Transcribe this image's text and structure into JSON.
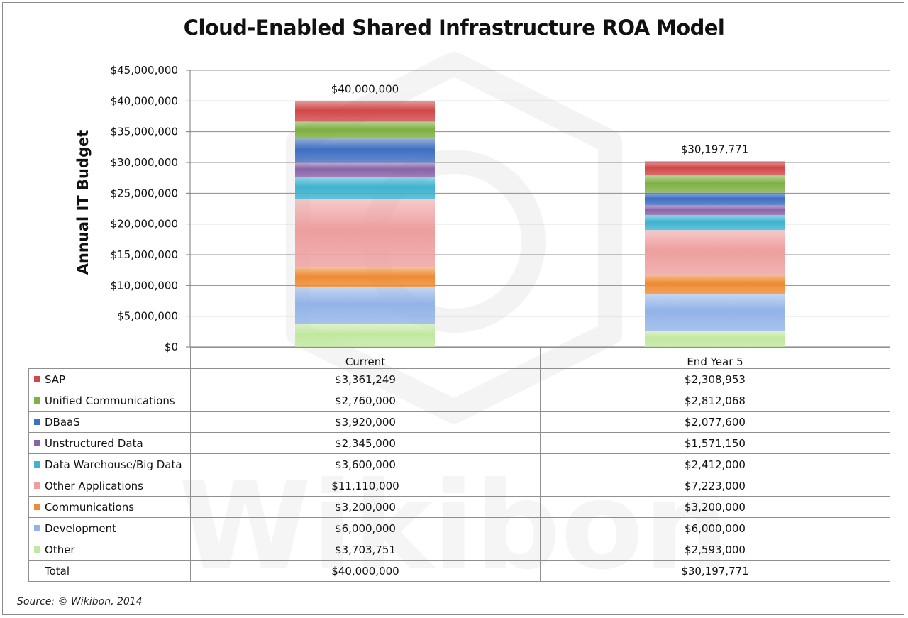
{
  "chart_data": {
    "type": "bar",
    "stacked": true,
    "title": "Cloud-Enabled Shared Infrastructure ROA Model",
    "ylabel": "Annual IT Budget",
    "xlabel": "",
    "ylim": [
      0,
      45000000
    ],
    "ytick_step": 5000000,
    "yticks": [
      "$0",
      "$5,000,000",
      "$10,000,000",
      "$15,000,000",
      "$20,000,000",
      "$25,000,000",
      "$30,000,000",
      "$35,000,000",
      "$40,000,000",
      "$45,000,000"
    ],
    "grid": true,
    "categories": [
      "Current",
      "End Year 5"
    ],
    "series": [
      {
        "name": "SAP",
        "color": "#d04848",
        "values": [
          3361249,
          2308953
        ],
        "labels": [
          "$3,361,249",
          "$2,308,953"
        ]
      },
      {
        "name": "Unified Communications",
        "color": "#7fb043",
        "values": [
          2760000,
          2812068
        ],
        "labels": [
          "$2,760,000",
          "$2,812,068"
        ]
      },
      {
        "name": "DBaaS",
        "color": "#3f6fc2",
        "values": [
          3920000,
          2077600
        ],
        "labels": [
          "$3,920,000",
          "$2,077,600"
        ]
      },
      {
        "name": "Unstructured Data",
        "color": "#8963a8",
        "values": [
          2345000,
          1571150
        ],
        "labels": [
          "$2,345,000",
          "$1,571,150"
        ]
      },
      {
        "name": "Data Warehouse/Big Data",
        "color": "#3eb2cf",
        "values": [
          3600000,
          2412000
        ],
        "labels": [
          "$3,600,000",
          "$2,412,000"
        ]
      },
      {
        "name": "Other Applications",
        "color": "#ee9e9e",
        "values": [
          11110000,
          7223000
        ],
        "labels": [
          "$11,110,000",
          "$7,223,000"
        ]
      },
      {
        "name": "Communications",
        "color": "#ee8b33",
        "values": [
          3200000,
          3200000
        ],
        "labels": [
          "$3,200,000",
          "$3,200,000"
        ]
      },
      {
        "name": "Development",
        "color": "#92b3e8",
        "values": [
          6000000,
          6000000
        ],
        "labels": [
          "$6,000,000",
          "$6,000,000"
        ]
      },
      {
        "name": "Other",
        "color": "#c2e8a0",
        "values": [
          3703751,
          2593000
        ],
        "labels": [
          "$3,703,751",
          "$2,593,000"
        ]
      }
    ],
    "totals": {
      "name": "Total",
      "values": [
        40000000,
        30197771
      ],
      "labels": [
        "$40,000,000",
        "$30,197,771"
      ]
    },
    "source": "Source: © Wikibon, 2014",
    "watermark": "Wikibon"
  }
}
